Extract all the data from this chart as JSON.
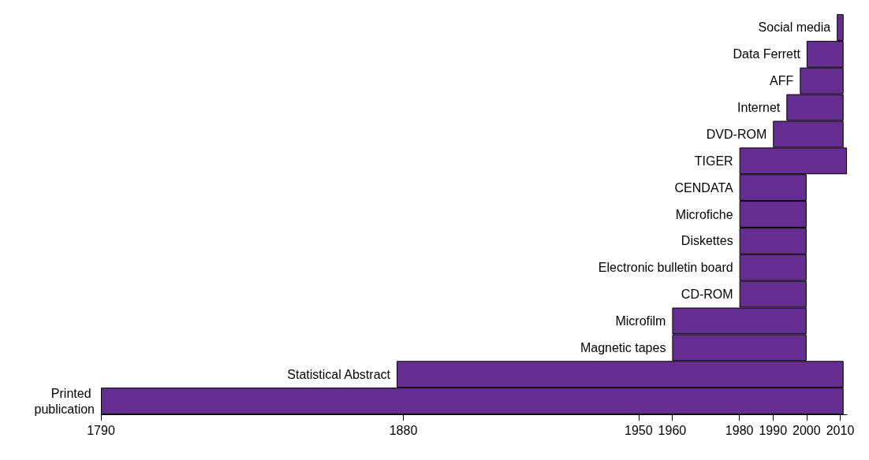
{
  "chart_data": {
    "type": "bar",
    "orientation": "horizontal",
    "color": "#652d8f",
    "categories": [
      "Social media",
      "Data Ferrett",
      "AFF",
      "Internet",
      "DVD-ROM",
      "TIGER",
      "CENDATA",
      "Microfiche",
      "Diskettes",
      "Electronic bulletin board",
      "CD-ROM",
      "Microfilm",
      "Magnetic tapes",
      "Statistical Abstract",
      "Printed publication"
    ],
    "base": [
      2009,
      2000,
      1998,
      1994,
      1990,
      1980,
      1980,
      1980,
      1980,
      1980,
      1980,
      1960,
      1960,
      1878,
      1790
    ],
    "values": [
      2,
      11,
      13,
      17,
      21,
      32,
      20,
      20,
      20,
      20,
      20,
      40,
      40,
      133,
      221
    ],
    "xlim": [
      1790,
      2012
    ],
    "xticks": [
      1790,
      1880,
      1950,
      1960,
      1980,
      1990,
      2000,
      2010
    ]
  }
}
